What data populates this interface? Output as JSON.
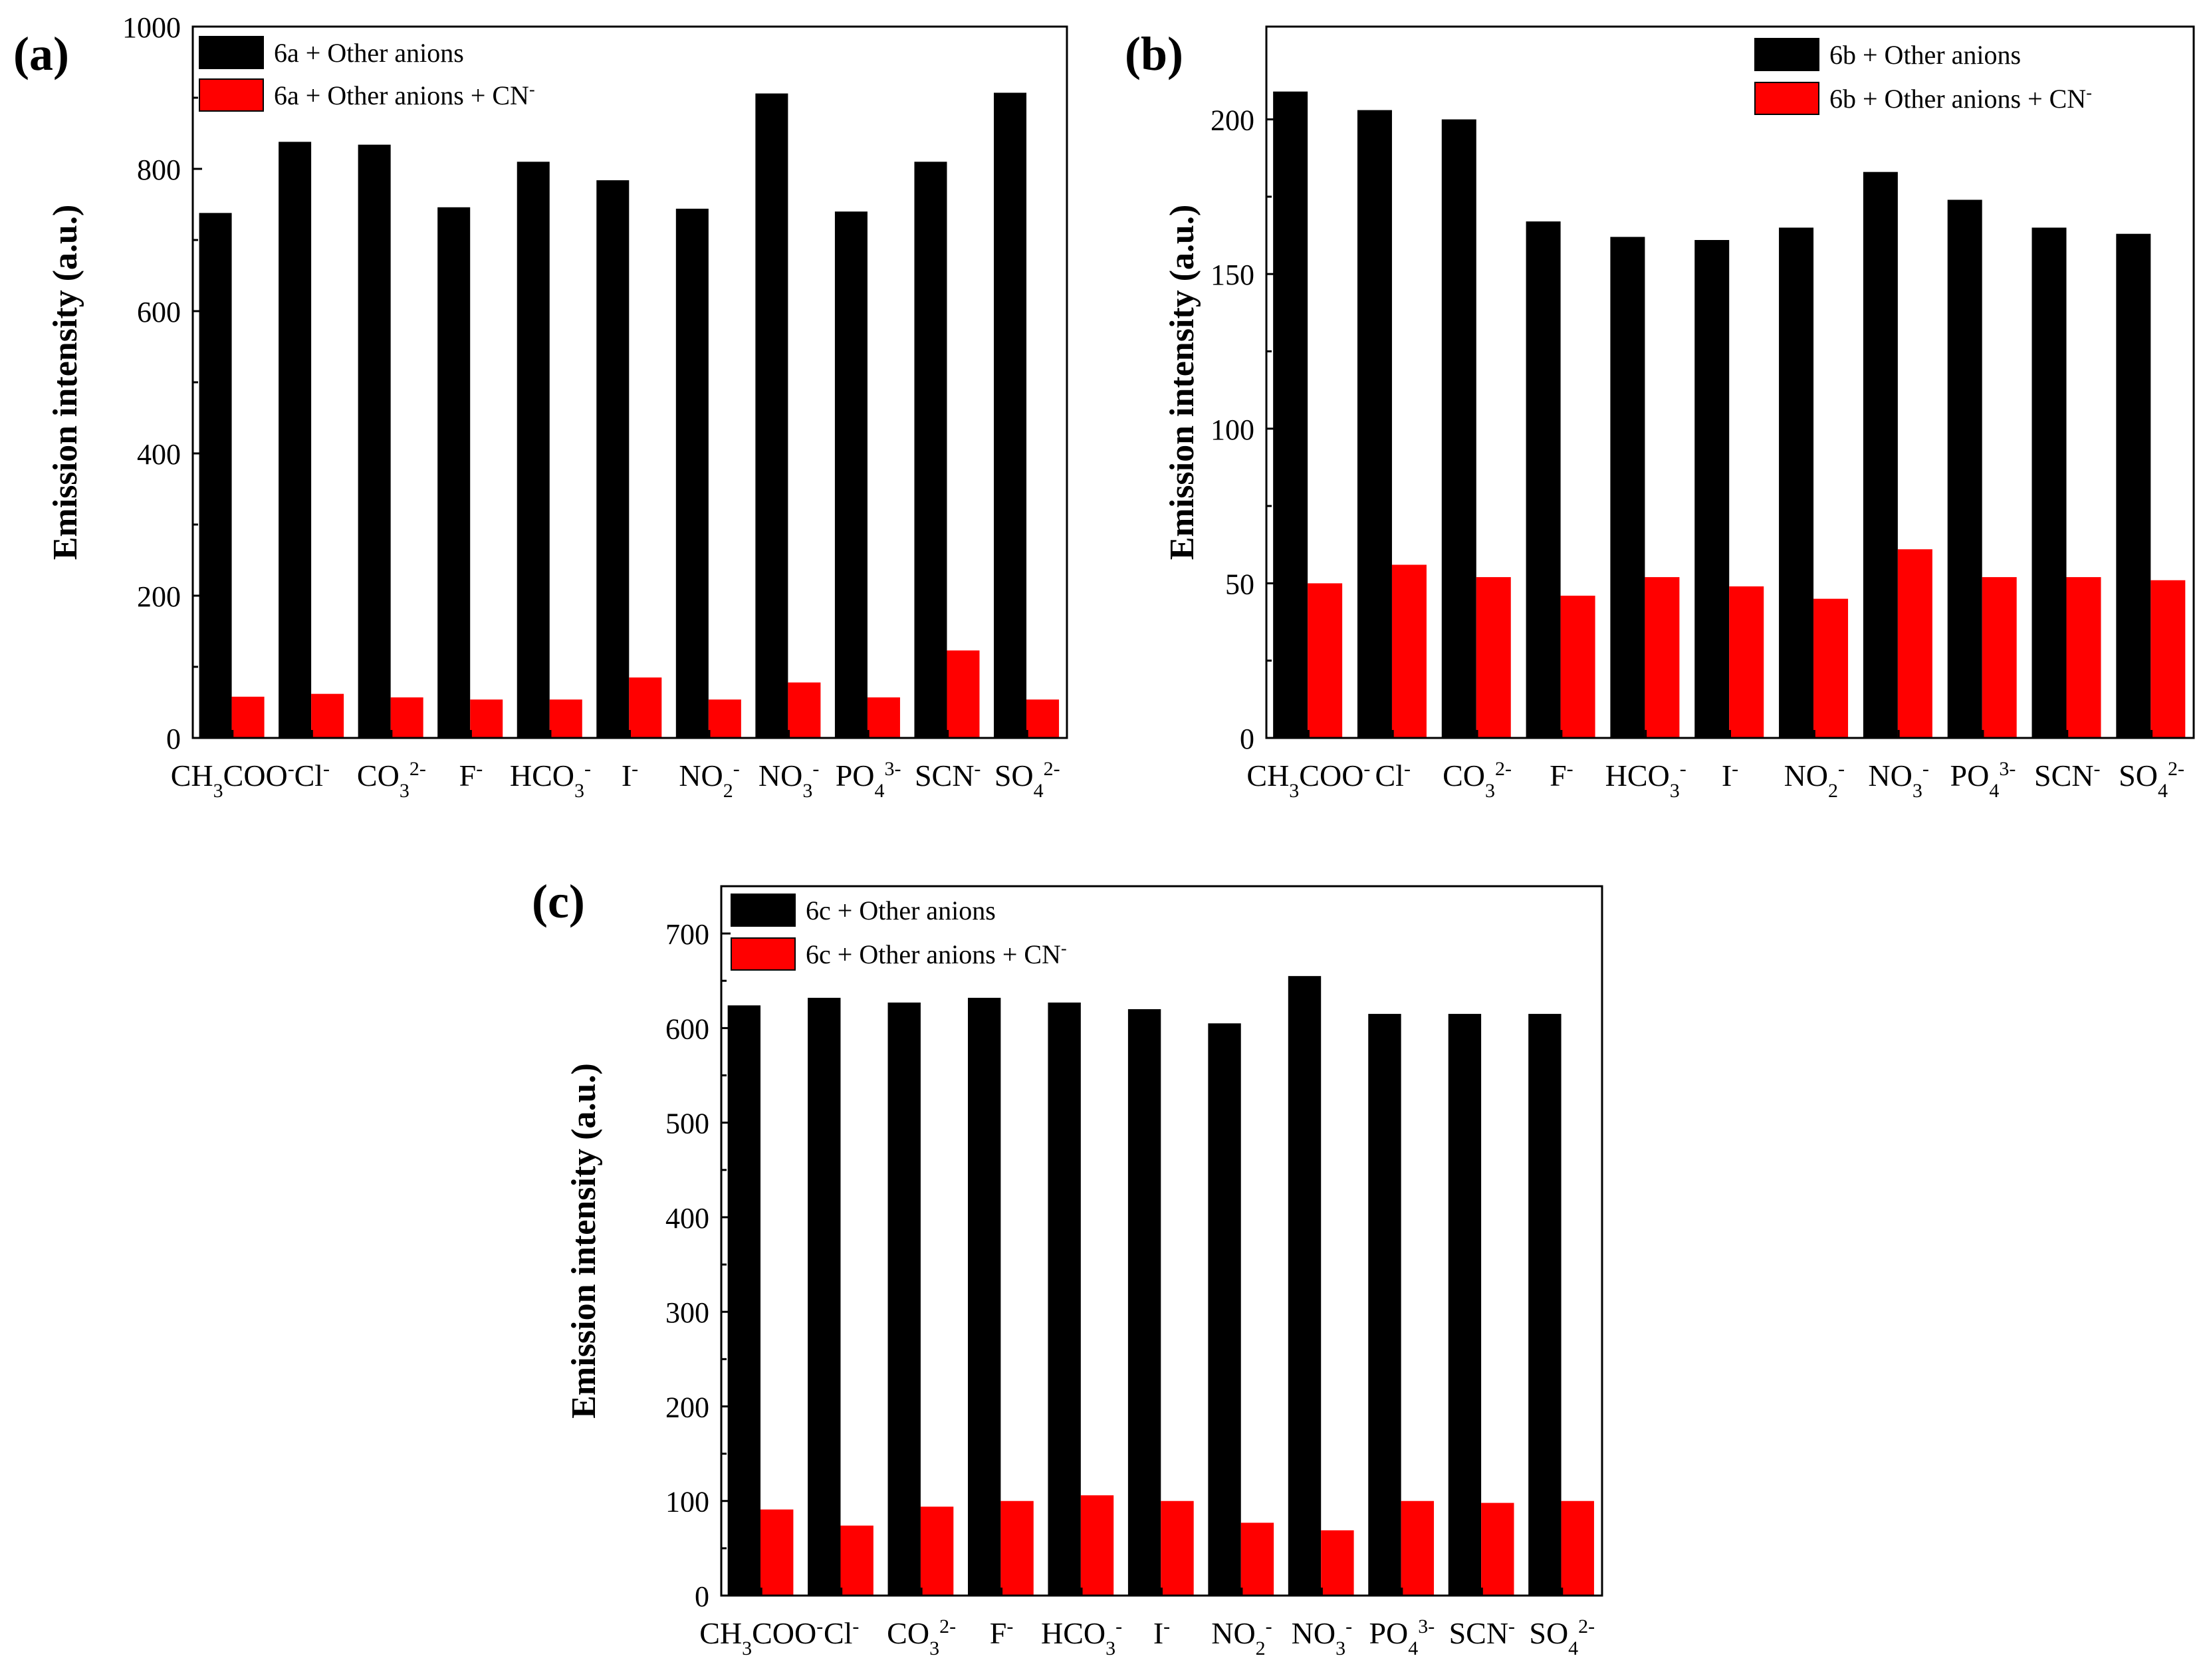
{
  "chart_data": [
    {
      "panel": "(a)",
      "type": "bar",
      "xlabel": "",
      "ylabel": "Emission intensity (a.u.)",
      "ylim": [
        0,
        1000
      ],
      "yticks": [
        0,
        200,
        400,
        600,
        800,
        1000
      ],
      "legend_position": "top-left",
      "categories": [
        {
          "base": "CH",
          "sub": "3",
          "rest": "COO",
          "sup": "-"
        },
        {
          "base": "Cl",
          "sup": "-"
        },
        {
          "base": "CO",
          "sub": "3",
          "sup": "2-"
        },
        {
          "base": "F",
          "sup": "-"
        },
        {
          "base": "HCO",
          "sub": "3",
          "sup": "-"
        },
        {
          "base": "I",
          "sup": "-"
        },
        {
          "base": "NO",
          "sub": "2",
          "sup": "-"
        },
        {
          "base": "NO",
          "sub": "3",
          "sup": "-"
        },
        {
          "base": "PO",
          "sub": "4",
          "sup": "3-"
        },
        {
          "base": "SCN",
          "sup": "-"
        },
        {
          "base": "SO",
          "sub": "4",
          "sup": "2-"
        }
      ],
      "series": [
        {
          "name": "6a + Other anions",
          "legend": {
            "text": "6a + Other anions"
          },
          "color": "#000000",
          "values": [
            738,
            838,
            834,
            746,
            810,
            784,
            744,
            906,
            740,
            810,
            907
          ]
        },
        {
          "name": "6a + Other anions + CN-",
          "legend": {
            "text": "6a + Other anions + CN",
            "sup": "-"
          },
          "color": "#ff0000",
          "values": [
            58,
            62,
            57,
            54,
            54,
            85,
            54,
            78,
            57,
            123,
            54
          ]
        }
      ]
    },
    {
      "panel": "(b)",
      "type": "bar",
      "xlabel": "",
      "ylabel": "Emission intensity (a.u.)",
      "ylim": [
        0,
        230
      ],
      "yticks": [
        0,
        50,
        100,
        150,
        200
      ],
      "legend_position": "top-right",
      "categories": [
        {
          "base": "CH",
          "sub": "3",
          "rest": "COO",
          "sup": "-"
        },
        {
          "base": "Cl",
          "sup": "-"
        },
        {
          "base": "CO",
          "sub": "3",
          "sup": "2-"
        },
        {
          "base": "F",
          "sup": "-"
        },
        {
          "base": "HCO",
          "sub": "3",
          "sup": "-"
        },
        {
          "base": "I",
          "sup": "-"
        },
        {
          "base": "NO",
          "sub": "2",
          "sup": "-"
        },
        {
          "base": "NO",
          "sub": "3",
          "sup": "-"
        },
        {
          "base": "PO",
          "sub": "4",
          "sup": "3-"
        },
        {
          "base": "SCN",
          "sup": "-"
        },
        {
          "base": "SO",
          "sub": "4",
          "sup": "2-"
        }
      ],
      "series": [
        {
          "name": "6b + Other anions",
          "legend": {
            "text": "6b + Other anions"
          },
          "color": "#000000",
          "values": [
            209,
            203,
            200,
            167,
            162,
            161,
            165,
            183,
            174,
            165,
            163
          ]
        },
        {
          "name": "6b + Other anions + CN-",
          "legend": {
            "text": "6b + Other anions + CN",
            "sup": "-"
          },
          "color": "#ff0000",
          "values": [
            50,
            56,
            52,
            46,
            52,
            49,
            45,
            61,
            52,
            52,
            51
          ]
        }
      ]
    },
    {
      "panel": "(c)",
      "type": "bar",
      "xlabel": "",
      "ylabel": "Emission intensity (a.u.)",
      "ylim": [
        0,
        750
      ],
      "yticks": [
        0,
        100,
        200,
        300,
        400,
        500,
        600,
        700
      ],
      "legend_position": "top-left",
      "categories": [
        {
          "base": "CH",
          "sub": "3",
          "rest": "COO",
          "sup": "-"
        },
        {
          "base": "Cl",
          "sup": "-"
        },
        {
          "base": "CO",
          "sub": "3",
          "sup": "2-"
        },
        {
          "base": "F",
          "sup": "-"
        },
        {
          "base": "HCO",
          "sub": "3",
          "sup": "-"
        },
        {
          "base": "I",
          "sup": "-"
        },
        {
          "base": "NO",
          "sub": "2",
          "sup": "-"
        },
        {
          "base": "NO",
          "sub": "3",
          "sup": "-"
        },
        {
          "base": "PO",
          "sub": "4",
          "sup": "3-"
        },
        {
          "base": "SCN",
          "sup": "-"
        },
        {
          "base": "SO",
          "sub": "4",
          "sup": "2-"
        }
      ],
      "series": [
        {
          "name": "6c + Other anions",
          "legend": {
            "text": "6c + Other anions"
          },
          "color": "#000000",
          "values": [
            624,
            632,
            627,
            632,
            627,
            620,
            605,
            655,
            615,
            615,
            615
          ]
        },
        {
          "name": "6c + Other anions + CN-",
          "legend": {
            "text": "6c + Other anions + CN",
            "sup": "-"
          },
          "color": "#ff0000",
          "values": [
            91,
            74,
            94,
            100,
            106,
            100,
            77,
            69,
            100,
            98,
            100
          ]
        }
      ]
    }
  ]
}
